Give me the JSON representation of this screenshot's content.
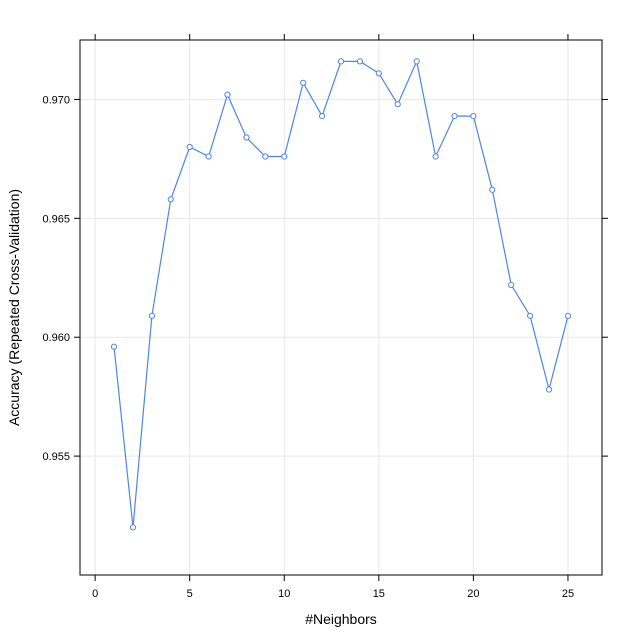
{
  "chart_data": {
    "type": "line",
    "title": "",
    "xlabel": "#Neighbors",
    "ylabel": "Accuracy (Repeated Cross-Validation)",
    "xlim": [
      -0.8,
      26.8
    ],
    "ylim": [
      0.95,
      0.9725
    ],
    "x_ticks": [
      0,
      5,
      10,
      15,
      20,
      25
    ],
    "x_tick_labels": [
      "0",
      "5",
      "10",
      "15",
      "20",
      "25"
    ],
    "y_ticks": [
      0.955,
      0.96,
      0.965,
      0.97
    ],
    "y_tick_labels": [
      "0.955",
      "0.960",
      "0.965",
      "0.970"
    ],
    "grid": true,
    "legend": "none",
    "series": [
      {
        "x": [
          1,
          2,
          3,
          4,
          5,
          6,
          7,
          8,
          9,
          10,
          11,
          12,
          13,
          14,
          15,
          16,
          17,
          18,
          19,
          20,
          21,
          22,
          23,
          24,
          25
        ],
        "values": [
          0.9596,
          0.952,
          0.9609,
          0.9658,
          0.968,
          0.9676,
          0.9702,
          0.9684,
          0.9676,
          0.9676,
          0.9707,
          0.9693,
          0.9716,
          0.9716,
          0.9711,
          0.9698,
          0.9716,
          0.9676,
          0.9693,
          0.9693,
          0.9662,
          0.9622,
          0.9609,
          0.9578,
          0.9609
        ],
        "color": "#4e86e4"
      }
    ],
    "colors": {
      "line": "#4e86e4",
      "grid": "#e8e8e8",
      "frame": "#000000"
    }
  }
}
